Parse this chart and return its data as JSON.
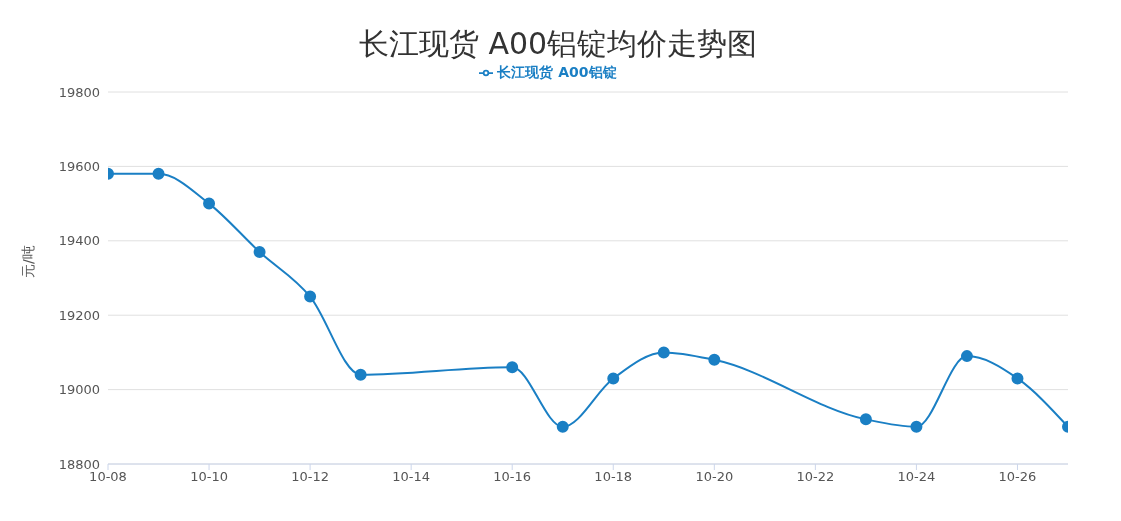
{
  "chart_data": {
    "type": "line",
    "title": "长江现货 A00铝锭均价走势图",
    "ylabel": "元/吨",
    "x": [
      "--10-08",
      "--10-09",
      "--10-10",
      "--10-11",
      "--10-12",
      "--10-13",
      "--10-16",
      "--10-17",
      "--10-18",
      "--10-19",
      "--10-20",
      "--10-23",
      "--10-24",
      "--10-25",
      "--10-26",
      "--10-27"
    ],
    "series": [
      {
        "name": "长江现货 A00铝锭",
        "color": "#1a7fc4",
        "values": [
          19580,
          19580,
          19500,
          19370,
          19250,
          19040,
          19060,
          18900,
          19030,
          19100,
          19080,
          18920,
          18900,
          19090,
          19030,
          18900
        ]
      }
    ],
    "xlim": [
      "--10-08",
      "--10-27"
    ],
    "xticks": [
      {
        "value": "--10-08",
        "label": "10-08"
      },
      {
        "value": "--10-10",
        "label": "10-10"
      },
      {
        "value": "--10-12",
        "label": "10-12"
      },
      {
        "value": "--10-14",
        "label": "10-14"
      },
      {
        "value": "--10-16",
        "label": "10-16"
      },
      {
        "value": "--10-18",
        "label": "10-18"
      },
      {
        "value": "--10-20",
        "label": "10-20"
      },
      {
        "value": "--10-22",
        "label": "10-22"
      },
      {
        "value": "--10-24",
        "label": "10-24"
      },
      {
        "value": "--10-26",
        "label": "10-26"
      }
    ],
    "ylim": [
      18800,
      19800
    ],
    "yticks": [
      18800,
      19000,
      19200,
      19400,
      19600,
      19800
    ],
    "grid": "y",
    "legend": "top",
    "marker": "circle",
    "line_style": "solid"
  }
}
